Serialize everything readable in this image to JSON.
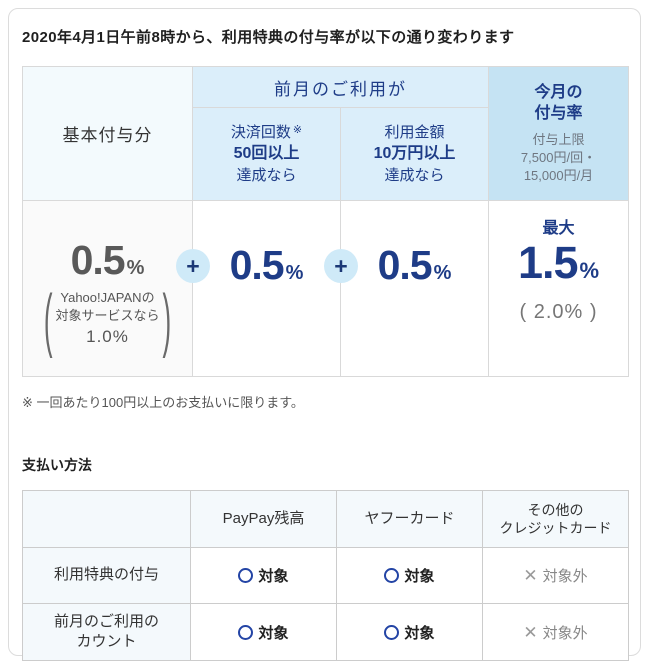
{
  "colors": {
    "navy_text": "#1e3c87",
    "header_light_blue_bg": "#dbeefa",
    "header_medium_blue_bg": "#c5e3f3",
    "base_header_bg": "#f3fafd",
    "plus_circle_bg": "#cfeaf8",
    "gray_number": "#595959",
    "muted_gray": "#767676",
    "circle_mark_blue": "#2344a5"
  },
  "title": "2020年4月1日午前8時から、利用特典の付与率が以下の通り変わります",
  "rate_table": {
    "base_header": "基本付与分",
    "prev_month_header": "前月のご利用が",
    "condition1": {
      "name": "決済回数",
      "mark": "※",
      "amount": "50回以上",
      "suffix": "達成なら"
    },
    "condition2": {
      "name": "利用金額",
      "amount": "10万円以上",
      "suffix": "達成なら"
    },
    "this_month": {
      "title": "今月の\n付与率",
      "cap": "付与上限\n7,500円/回・\n15,000円/月"
    },
    "base_value": {
      "number": "0.5",
      "unit": "%",
      "paren_open": "(",
      "paren_close": ")",
      "note_line1": "Yahoo!JAPANの",
      "note_line2": "対象サービスなら",
      "note_value": "1.0%"
    },
    "plus": "+",
    "value1": {
      "number": "0.5",
      "unit": "%"
    },
    "value2": {
      "number": "0.5",
      "unit": "%"
    },
    "total": {
      "label": "最大",
      "number": "1.5",
      "unit": "%",
      "alt": "( 2.0% )"
    }
  },
  "footnote": "※ 一回あたり100円以上のお支払いに限ります。",
  "payment": {
    "heading": "支払い方法",
    "cross_glyph": "✕",
    "columns": [
      "PayPay残高",
      "ヤフーカード",
      "その他の\nクレジットカード"
    ],
    "rows": [
      {
        "label": "利用特典の付与",
        "cells": [
          {
            "text": "対象"
          },
          {
            "text": "対象"
          },
          {
            "text": "対象外"
          }
        ]
      },
      {
        "label": "前月のご利用の\nカウント",
        "cells": [
          {
            "text": "対象"
          },
          {
            "text": "対象"
          },
          {
            "text": "対象外"
          }
        ]
      }
    ]
  }
}
